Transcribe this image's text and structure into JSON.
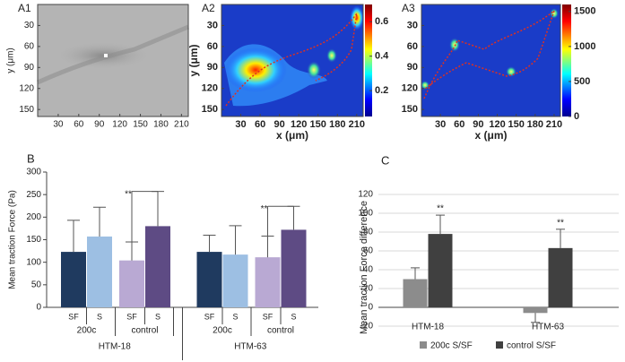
{
  "chart_data": [
    {
      "type": "image",
      "title": "A1",
      "ylabel": "y (μm)",
      "xlim": [
        0,
        220
      ],
      "xticks": [
        30,
        60,
        90,
        120,
        150,
        180,
        210
      ],
      "ylim": [
        0,
        160
      ],
      "yticks": [
        30,
        60,
        90,
        120,
        150
      ]
    },
    {
      "type": "heatmap",
      "title": "A2",
      "xlabel": "x (μm)",
      "ylabel": "y (μm)",
      "xlim": [
        0,
        220
      ],
      "xticks": [
        30,
        60,
        90,
        120,
        150,
        180,
        210
      ],
      "ylim": [
        0,
        160
      ],
      "yticks": [
        30,
        60,
        90,
        120,
        150
      ],
      "clim": [
        0.05,
        0.7
      ],
      "cticks": [
        0.2,
        0.4,
        0.6
      ]
    },
    {
      "type": "heatmap",
      "title": "A3",
      "xlabel": "x (μm)",
      "xlim": [
        0,
        220
      ],
      "xticks": [
        30,
        60,
        90,
        120,
        150,
        180,
        210
      ],
      "ylim": [
        0,
        160
      ],
      "yticks": [
        30,
        60,
        90,
        120,
        150
      ],
      "clim": [
        0,
        1600
      ],
      "cticks": [
        0,
        500,
        1000,
        1500
      ]
    },
    {
      "type": "bar",
      "title": "B",
      "ylabel": "Mean traction Force  (Pa)",
      "categories": [
        "SF",
        "S",
        "SF",
        "S",
        "SF",
        "S",
        "SF",
        "S"
      ],
      "values": [
        123,
        157,
        104,
        180,
        123,
        117,
        111,
        172
      ],
      "errors": [
        70,
        65,
        41,
        77,
        37,
        64,
        47,
        52
      ],
      "colors": [
        "#1f3a5f",
        "#9dbfe3",
        "#b9a9d3",
        "#5e4b84",
        "#1f3a5f",
        "#9dbfe3",
        "#b9a9d3",
        "#5e4b84"
      ],
      "subgroups": [
        "200c",
        "control",
        "200c",
        "control"
      ],
      "groups": [
        "HTM-18",
        "HTM-63"
      ],
      "annotations": [
        "**",
        "**"
      ],
      "ylim": [
        0,
        300
      ],
      "yticks": [
        0,
        50,
        100,
        150,
        200,
        250,
        300
      ],
      "grid": false
    },
    {
      "type": "groupedbar",
      "title": "C",
      "ylabel": "Mean traction Force difference",
      "categories": [
        "HTM-18",
        "HTM-63"
      ],
      "series": [
        {
          "name": "200c  S/SF",
          "color": "#8c8c8c",
          "values": [
            30,
            -6
          ],
          "errors": [
            12,
            10
          ]
        },
        {
          "name": "control  S/SF",
          "color": "#404040",
          "values": [
            78,
            63
          ],
          "errors": [
            20,
            20
          ]
        }
      ],
      "annotations": [
        "**",
        "**"
      ],
      "ylim": [
        -20,
        120
      ],
      "yticks": [
        -20,
        0,
        20,
        40,
        60,
        80,
        100,
        120
      ],
      "grid": true,
      "legend": "bottom"
    }
  ]
}
